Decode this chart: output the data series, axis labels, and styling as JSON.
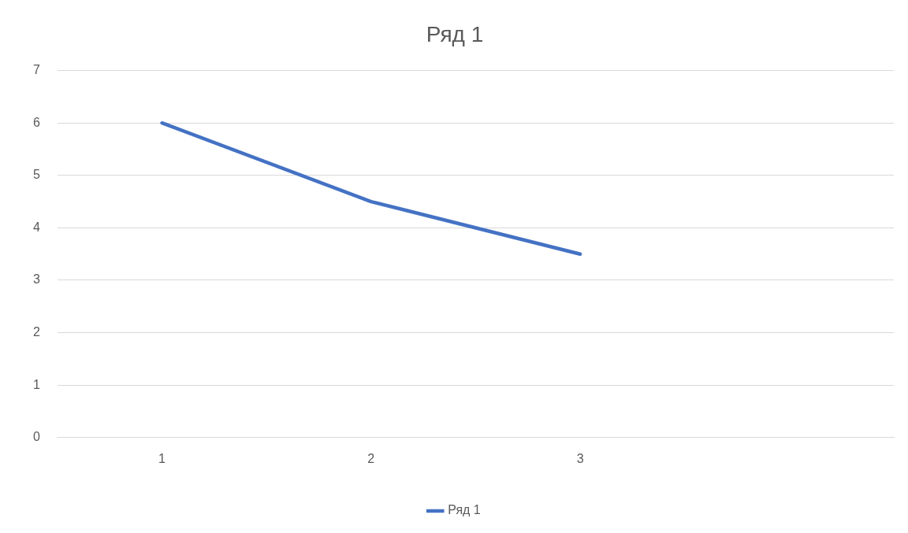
{
  "chart_data": {
    "type": "line",
    "title": "Ряд 1",
    "categories": [
      "1",
      "2",
      "3",
      null
    ],
    "series": [
      {
        "name": "Ряд 1",
        "color": "#4472c4",
        "values": [
          6,
          4.5,
          3.5,
          null
        ]
      }
    ],
    "ylim": [
      0,
      7
    ],
    "yticks": [
      0,
      1,
      2,
      3,
      4,
      5,
      6,
      7
    ],
    "grid": "y",
    "legend": "bottom",
    "marker": "none",
    "line_style": "solid"
  }
}
